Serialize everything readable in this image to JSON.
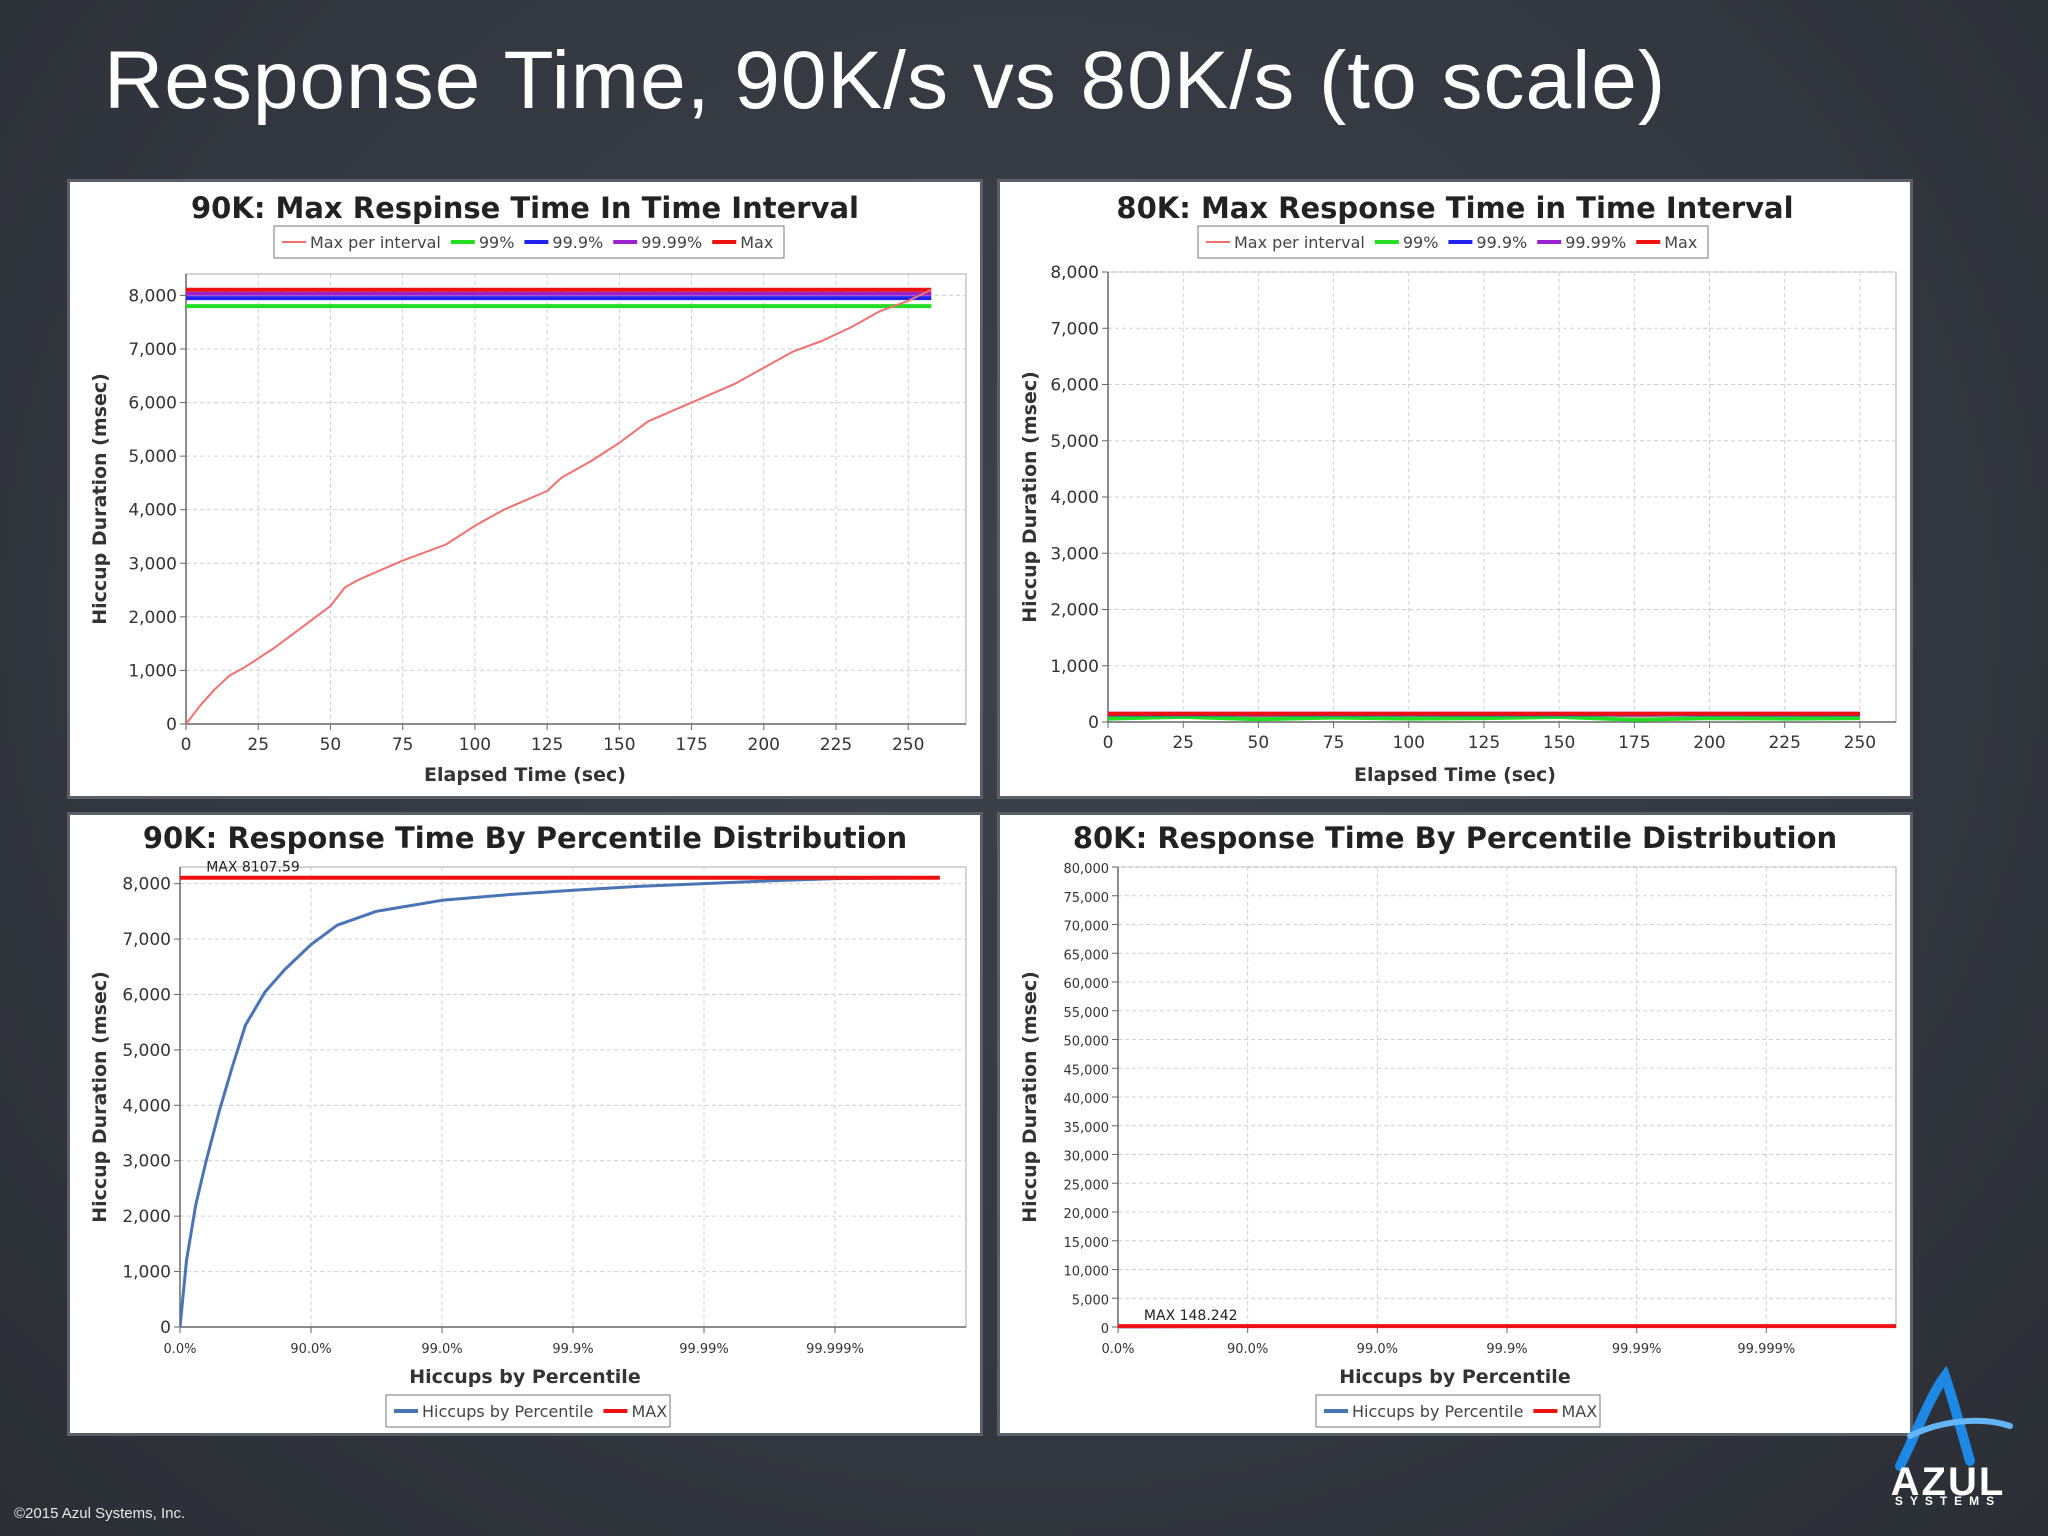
{
  "slide": {
    "title": "Response Time, 90K/s vs 80K/s (to scale)",
    "copyright": "©2015 Azul Systems, Inc.",
    "logo_text": "AZUL",
    "logo_subtext": "SYSTEMS"
  },
  "colors": {
    "max_per_interval": "#f07070",
    "p99": "#22dd22",
    "p999": "#2222ee",
    "p9999": "#9922cc",
    "max": "#ee1111",
    "hiccups": "#4a74b4"
  },
  "chart_data": [
    {
      "type": "line",
      "title": "90K: Max Respinse Time In Time Interval",
      "xlabel": "Elapsed Time (sec)",
      "ylabel": "Hiccup Duration (msec)",
      "xlim": [
        0,
        270
      ],
      "ylim": [
        0,
        8400
      ],
      "xticks": [
        0,
        25,
        50,
        75,
        100,
        125,
        150,
        175,
        200,
        225,
        250
      ],
      "xtick_labels": [
        "0",
        "25",
        "50",
        "75",
        "100",
        "125",
        "150",
        "175",
        "200",
        "225",
        "250"
      ],
      "yticks": [
        0,
        1000,
        2000,
        3000,
        4000,
        5000,
        6000,
        7000,
        8000
      ],
      "ytick_labels": [
        "0",
        "1,000",
        "2,000",
        "3,000",
        "4,000",
        "5,000",
        "6,000",
        "7,000",
        "8,000"
      ],
      "grid": true,
      "legend": [
        "Max per interval",
        "99%",
        "99.9%",
        "99.99%",
        "Max"
      ],
      "series": [
        {
          "name": "99%",
          "x": [
            0,
            258
          ],
          "y": [
            7800,
            7800
          ]
        },
        {
          "name": "99.9%",
          "x": [
            0,
            258
          ],
          "y": [
            7950,
            7950
          ]
        },
        {
          "name": "99.99%",
          "x": [
            0,
            258
          ],
          "y": [
            8030,
            8030
          ]
        },
        {
          "name": "Max",
          "x": [
            0,
            258
          ],
          "y": [
            8107,
            8107
          ]
        },
        {
          "name": "Max per interval",
          "x": [
            0,
            5,
            10,
            15,
            20,
            30,
            40,
            50,
            55,
            60,
            75,
            90,
            100,
            110,
            125,
            130,
            140,
            150,
            160,
            175,
            190,
            200,
            210,
            220,
            230,
            240,
            250,
            258
          ],
          "y": [
            0,
            350,
            650,
            900,
            1050,
            1400,
            1800,
            2200,
            2550,
            2700,
            3050,
            3350,
            3700,
            4000,
            4350,
            4600,
            4900,
            5250,
            5650,
            6000,
            6350,
            6650,
            6950,
            7150,
            7400,
            7700,
            7900,
            8107
          ]
        }
      ]
    },
    {
      "type": "line",
      "title": "80K: Max Response Time in Time Interval",
      "xlabel": "Elapsed Time (sec)",
      "ylabel": "Hiccup Duration (msec)",
      "xlim": [
        0,
        262
      ],
      "ylim": [
        0,
        8000
      ],
      "xticks": [
        0,
        25,
        50,
        75,
        100,
        125,
        150,
        175,
        200,
        225,
        250
      ],
      "xtick_labels": [
        "0",
        "25",
        "50",
        "75",
        "100",
        "125",
        "150",
        "175",
        "200",
        "225",
        "250"
      ],
      "yticks": [
        0,
        1000,
        2000,
        3000,
        4000,
        5000,
        6000,
        7000,
        8000
      ],
      "ytick_labels": [
        "0",
        "1,000",
        "2,000",
        "3,000",
        "4,000",
        "5,000",
        "6,000",
        "7,000",
        "8,000"
      ],
      "grid": true,
      "legend": [
        "Max per interval",
        "99%",
        "99.9%",
        "99.99%",
        "Max"
      ],
      "series": [
        {
          "name": "Max per interval",
          "x": [
            0,
            25,
            50,
            75,
            100,
            125,
            150,
            175,
            200,
            225,
            250
          ],
          "y": [
            110,
            140,
            100,
            130,
            120,
            110,
            140,
            100,
            130,
            110,
            120
          ]
        },
        {
          "name": "99%",
          "x": [
            0,
            25,
            50,
            75,
            100,
            125,
            150,
            175,
            200,
            225,
            250
          ],
          "y": [
            60,
            90,
            50,
            80,
            60,
            70,
            90,
            40,
            70,
            60,
            70
          ]
        },
        {
          "name": "99.9%",
          "x": [
            0,
            250
          ],
          "y": [
            135,
            135
          ]
        },
        {
          "name": "99.99%",
          "x": [
            0,
            250
          ],
          "y": [
            145,
            145
          ]
        },
        {
          "name": "Max",
          "x": [
            0,
            250
          ],
          "y": [
            148,
            148
          ]
        }
      ]
    },
    {
      "type": "line",
      "title": "90K: Response Time By Percentile Distribution",
      "xlabel": "Hiccups by Percentile",
      "ylabel": "Hiccup Duration (msec)",
      "xscale": "log-percentile",
      "xlim": [
        0,
        6
      ],
      "ylim": [
        0,
        8300
      ],
      "xticks": [
        0,
        1,
        2,
        3,
        4,
        5
      ],
      "xtick_labels": [
        "0.0%",
        "90.0%",
        "99.0%",
        "99.9%",
        "99.99%",
        "99.999%"
      ],
      "yticks": [
        0,
        1000,
        2000,
        3000,
        4000,
        5000,
        6000,
        7000,
        8000
      ],
      "ytick_labels": [
        "0",
        "1,000",
        "2,000",
        "3,000",
        "4,000",
        "5,000",
        "6,000",
        "7,000",
        "8,000"
      ],
      "grid": true,
      "annotation": "MAX 8107.59",
      "legend": [
        "Hiccups by Percentile",
        "MAX"
      ],
      "series": [
        {
          "name": "Hiccups by Percentile",
          "x": [
            0,
            0.05,
            0.12,
            0.2,
            0.3,
            0.4,
            0.5,
            0.65,
            0.8,
            1.0,
            1.2,
            1.5,
            2.0,
            2.5,
            3.0,
            3.5,
            4.0,
            4.5,
            5.0,
            5.5,
            5.8
          ],
          "y": [
            0,
            1200,
            2200,
            3000,
            3900,
            4700,
            5450,
            6050,
            6450,
            6900,
            7250,
            7500,
            7700,
            7800,
            7880,
            7950,
            8000,
            8050,
            8090,
            8100,
            8107
          ]
        },
        {
          "name": "MAX",
          "x": [
            0,
            5.8
          ],
          "y": [
            8107.59,
            8107.59
          ]
        }
      ]
    },
    {
      "type": "line",
      "title": "80K: Response Time By Percentile Distribution",
      "xlabel": "Hiccups by Percentile",
      "ylabel": "Hiccup Duration (msec)",
      "xscale": "log-percentile",
      "xlim": [
        0,
        6
      ],
      "ylim": [
        0,
        80000
      ],
      "xticks": [
        0,
        1,
        2,
        3,
        4,
        5
      ],
      "xtick_labels": [
        "0.0%",
        "90.0%",
        "99.0%",
        "99.9%",
        "99.99%",
        "99.999%"
      ],
      "yticks": [
        0,
        5000,
        10000,
        15000,
        20000,
        25000,
        30000,
        35000,
        40000,
        45000,
        50000,
        55000,
        60000,
        65000,
        70000,
        75000,
        80000
      ],
      "ytick_labels": [
        "0",
        "5,000",
        "10,000",
        "15,000",
        "20,000",
        "25,000",
        "30,000",
        "35,000",
        "40,000",
        "45,000",
        "50,000",
        "55,000",
        "60,000",
        "65,000",
        "70,000",
        "75,000",
        "80,000"
      ],
      "grid": true,
      "annotation": "MAX 148.242",
      "legend": [
        "Hiccups by Percentile",
        "MAX"
      ],
      "series": [
        {
          "name": "Hiccups by Percentile",
          "x": [
            0,
            1,
            2,
            3,
            4,
            5,
            6.5
          ],
          "y": [
            20,
            80,
            110,
            130,
            140,
            145,
            148
          ]
        },
        {
          "name": "MAX",
          "x": [
            0,
            6.5
          ],
          "y": [
            148.242,
            148.242
          ]
        }
      ]
    }
  ]
}
